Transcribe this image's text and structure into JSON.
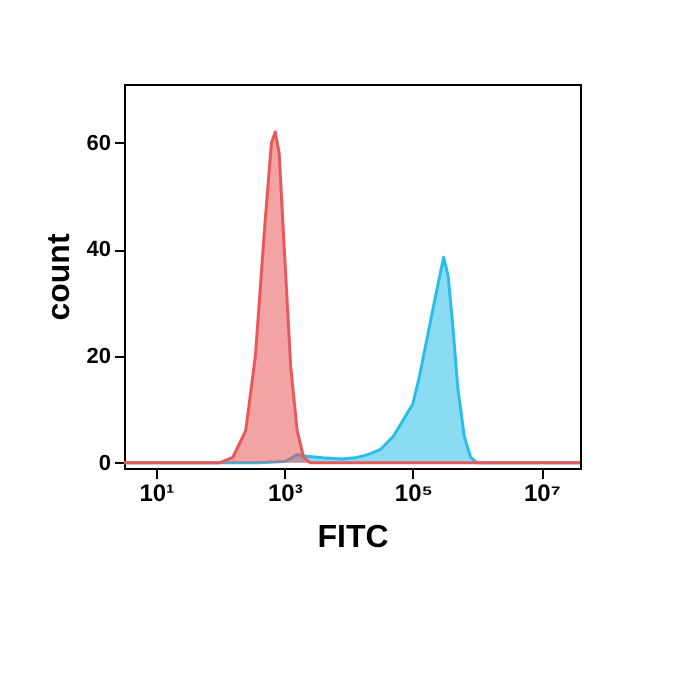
{
  "chart_data": {
    "type": "area",
    "xlabel": "FITC",
    "ylabel": "count",
    "log": "x",
    "grid": false,
    "xlim": [
      3.2,
      40000000
    ],
    "ylim": [
      -1,
      71
    ],
    "xticks": [
      {
        "value": 10,
        "label": "10¹"
      },
      {
        "value": 1000,
        "label": "10³"
      },
      {
        "value": 100000,
        "label": "10⁵"
      },
      {
        "value": 10000000,
        "label": "10⁷"
      }
    ],
    "yticks": [
      0,
      20,
      40,
      60
    ],
    "series": [
      {
        "color": "#2bbde8",
        "x": [
          3.2,
          100,
          400,
          1000,
          1259,
          1585,
          2239,
          3981,
          7943,
          12589,
          19953,
          31623,
          50119,
          70795,
          100000,
          125893,
          158489,
          223872,
          301995,
          354813,
          416869,
          501187,
          630957,
          794328,
          1000000,
          40000000
        ],
        "values": [
          0,
          0,
          0,
          0.2,
          0.8,
          1.5,
          1.2,
          0.9,
          0.7,
          0.9,
          1.5,
          2.5,
          5,
          8,
          11,
          16,
          22,
          31,
          38.5,
          35,
          26,
          14,
          5,
          1,
          0,
          0
        ]
      },
      {
        "color": "#e8585a",
        "x": [
          3.2,
          100,
          158,
          251,
          355,
          501,
          631,
          724,
          832,
          1000,
          1259,
          1585,
          1995,
          2512,
          40000000
        ],
        "values": [
          0,
          0,
          1,
          6,
          20,
          45,
          60,
          62,
          58,
          40,
          18,
          6,
          1,
          0,
          0
        ]
      }
    ]
  }
}
